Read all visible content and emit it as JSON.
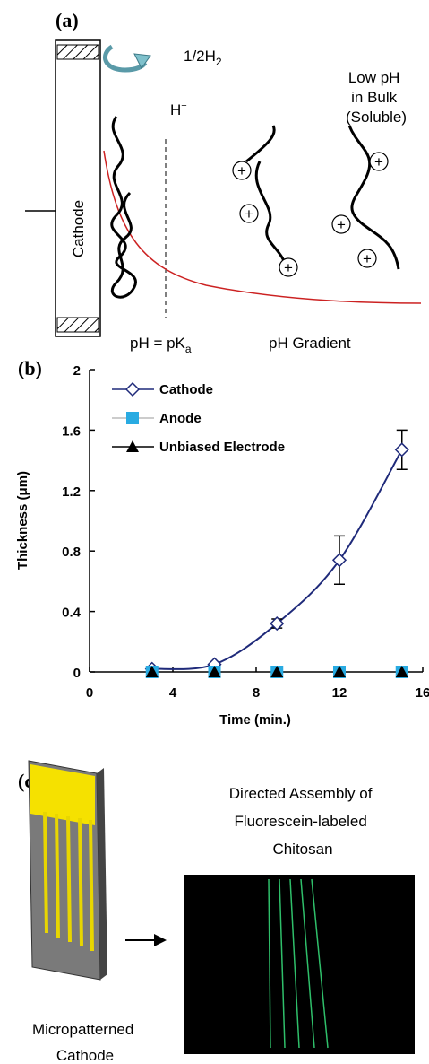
{
  "panel_a": {
    "label": "(a)",
    "electrode": "Cathode",
    "product": {
      "text": "1/2H",
      "sub": "2"
    },
    "ion": {
      "text": "H",
      "sup": "+"
    },
    "bulk": [
      "Low pH",
      "in Bulk",
      "(Soluble)"
    ],
    "equilibrium": {
      "text": "pH = pK",
      "sub": "a"
    },
    "gradient": "pH Gradient"
  },
  "chart_data": {
    "type": "line",
    "label": "(b)",
    "x_label": "Time (min.)",
    "y_label": "Thickness (μm)",
    "x": [
      3,
      6,
      9,
      12,
      15
    ],
    "series": [
      {
        "name": "Cathode",
        "color": "#1f2a7a",
        "marker": "diamond",
        "values": [
          0.02,
          0.05,
          0.32,
          0.74,
          1.47
        ],
        "errors": [
          0,
          0,
          0.03,
          0.16,
          0.13
        ]
      },
      {
        "name": "Anode",
        "color": "#29abe2",
        "marker": "square",
        "values": [
          0,
          0,
          0,
          0,
          0
        ]
      },
      {
        "name": "Unbiased Electrode",
        "color": "#000000",
        "marker": "triangle",
        "values": [
          0,
          0,
          0,
          0,
          0
        ]
      }
    ],
    "xlim": [
      0,
      16
    ],
    "xticks": [
      0,
      4,
      8,
      12,
      16
    ],
    "ylim": [
      0,
      2
    ],
    "yticks": [
      0,
      0.4,
      0.8,
      1.2,
      1.6,
      2
    ],
    "legend": "top-left"
  },
  "panel_c": {
    "label": "(c)",
    "title": [
      "Directed Assembly of",
      "Fluorescein-labeled",
      "Chitosan"
    ],
    "device": [
      "Micropatterned",
      "Cathode"
    ]
  }
}
